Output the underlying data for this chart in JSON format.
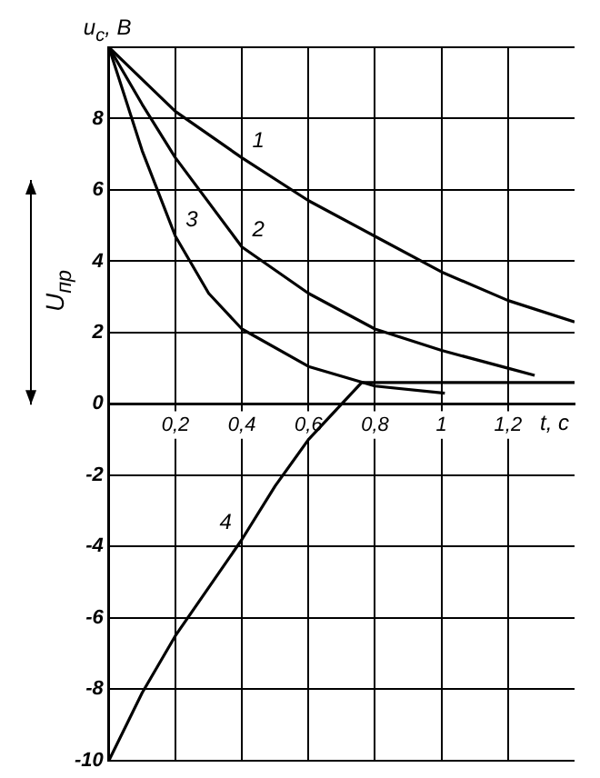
{
  "chart_data": {
    "type": "line",
    "ylabel": "u$_{c}$, В",
    "xlabel": "t, c",
    "xlim": [
      0,
      1.4
    ],
    "ylim": [
      -10,
      10
    ],
    "xticks": [
      {
        "value": 0.2,
        "label": "0,2"
      },
      {
        "value": 0.4,
        "label": "0,4"
      },
      {
        "value": 0.6,
        "label": "0,6"
      },
      {
        "value": 0.8,
        "label": "0,8"
      },
      {
        "value": 1,
        "label": "1"
      },
      {
        "value": 1.2,
        "label": "1,2"
      }
    ],
    "yticks": [
      -10,
      -8,
      -6,
      -4,
      -2,
      0,
      2,
      4,
      6,
      8,
      {
        "value": 10,
        "label": null
      }
    ],
    "grid": true,
    "marker": "none",
    "line_style": "solid",
    "series": [
      {
        "name": "1",
        "color": "#000000",
        "x": [
          0,
          0.1,
          0.2,
          0.4,
          0.6,
          0.8,
          1.0,
          1.2,
          1.4
        ],
        "values": [
          10,
          9.1,
          8.2,
          6.9,
          5.7,
          4.7,
          3.7,
          2.9,
          2.3
        ]
      },
      {
        "name": "2",
        "color": "#000000",
        "x": [
          0,
          0.1,
          0.2,
          0.4,
          0.6,
          0.8,
          1.0,
          1.2,
          1.28
        ],
        "values": [
          10,
          8.4,
          6.9,
          4.4,
          3.1,
          2.1,
          1.5,
          1.0,
          0.8
        ]
      },
      {
        "name": "3",
        "color": "#000000",
        "x": [
          0,
          0.1,
          0.2,
          0.3,
          0.4,
          0.6,
          0.8,
          1.01
        ],
        "values": [
          10,
          7.1,
          4.7,
          3.1,
          2.1,
          1.05,
          0.5,
          0.3
        ]
      },
      {
        "name": "4",
        "color": "#000000",
        "x": [
          0,
          0.1,
          0.2,
          0.4,
          0.5,
          0.6,
          0.7,
          0.76,
          1.0,
          1.4
        ],
        "values": [
          -10,
          -8.1,
          -6.5,
          -3.8,
          -2.3,
          -1.0,
          0,
          0.6,
          0.6,
          0.6
        ]
      }
    ],
    "annotations": [
      "U$_{пр}$"
    ]
  }
}
